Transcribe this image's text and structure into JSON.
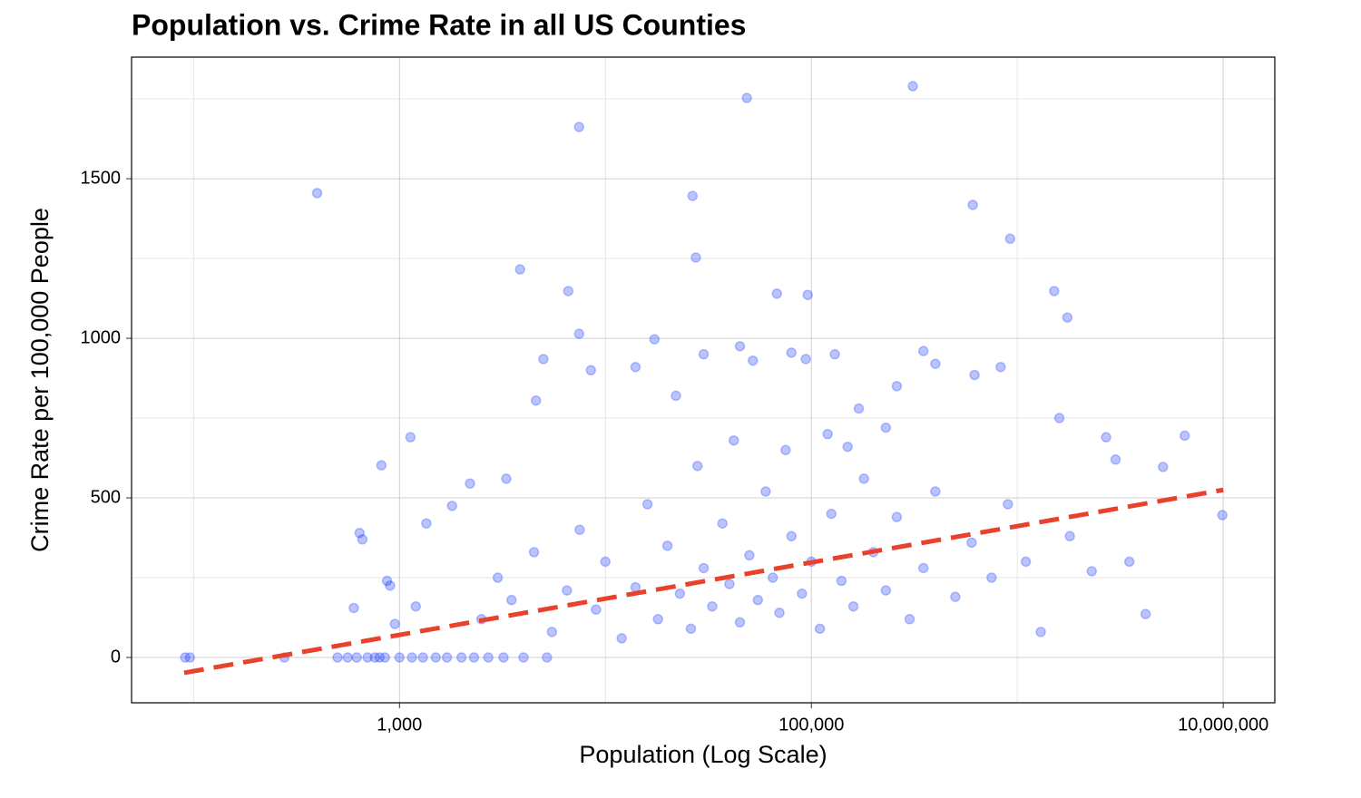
{
  "chart_data": {
    "type": "scatter",
    "title": "Population vs. Crime Rate in all US Counties",
    "x_label": "Population (Log Scale)",
    "y_label": "Crime Rate per 100,000 People",
    "x_scale": "log",
    "grid": true,
    "color": "#1a3dff",
    "xlim": [
      50,
      17800000
    ],
    "ylim": [
      -142,
      1881
    ],
    "xticks": [
      {
        "value": 1000,
        "label": "1,000"
      },
      {
        "value": 100000,
        "label": "100,000"
      },
      {
        "value": 10000000,
        "label": "10,000,000"
      }
    ],
    "x_minor_ticks": [
      100,
      10000,
      1000000
    ],
    "yticks": [
      0,
      500,
      1000,
      1500
    ],
    "y_minor_ticks": [
      250,
      750,
      1250,
      1750
    ],
    "trend": {
      "color": "#e8412c",
      "x": [
        90,
        10000000
      ],
      "y": [
        -48,
        525
      ]
    },
    "x": [
      91,
      96,
      276,
      500,
      560,
      620,
      700,
      760,
      800,
      850,
      1000,
      1150,
      1300,
      1500,
      1700,
      2000,
      2300,
      2700,
      3200,
      4000,
      5200,
      398,
      817,
      1130,
      3850,
      7450,
      48600,
      311000,
      26500,
      27500,
      608000,
      923000,
      96000,
      68000,
      1510000,
      1750000,
      9900000,
      5100000,
      4200000,
      6600,
      7450,
      17300,
      640,
      660,
      870,
      900,
      600,
      950,
      1200,
      1350,
      1800,
      2200,
      3300,
      4600,
      5000,
      8500,
      14000,
      22000,
      30000,
      45000,
      52000,
      80000,
      94000,
      130000,
      170000,
      260000,
      350000,
      400000,
      620000,
      830000,
      1600000,
      2700000,
      6500000,
      2500,
      3000,
      3500,
      4500,
      5500,
      6500,
      7500,
      9000,
      10000,
      12000,
      14000,
      16000,
      18000,
      20000,
      23000,
      26000,
      30000,
      33000,
      37000,
      40000,
      45000,
      50000,
      55000,
      60000,
      65000,
      70000,
      80000,
      90000,
      100000,
      110000,
      125000,
      140000,
      160000,
      180000,
      200000,
      230000,
      260000,
      300000,
      350000,
      400000,
      500000,
      600000,
      750000,
      900000,
      1100000,
      1300000,
      1800000,
      2300000,
      3000000,
      3500000,
      28000,
      42000,
      75000,
      120000,
      150000,
      230000
    ],
    "y": [
      0,
      0,
      0,
      0,
      0,
      0,
      0,
      0,
      0,
      0,
      0,
      0,
      0,
      0,
      0,
      0,
      0,
      0,
      0,
      0,
      0,
      1455,
      602,
      690,
      1216,
      1662,
      1753,
      1790,
      1446,
      1253,
      1418,
      1312,
      1136,
      1140,
      1148,
      1065,
      446,
      597,
      136,
      1148,
      1014,
      997,
      390,
      370,
      240,
      225,
      155,
      105,
      160,
      420,
      475,
      545,
      560,
      805,
      935,
      900,
      910,
      820,
      950,
      975,
      930,
      955,
      935,
      950,
      780,
      850,
      960,
      920,
      885,
      910,
      750,
      690,
      695,
      120,
      250,
      180,
      330,
      80,
      210,
      400,
      150,
      300,
      60,
      220,
      480,
      120,
      350,
      200,
      90,
      280,
      160,
      420,
      230,
      110,
      320,
      180,
      520,
      250,
      140,
      380,
      200,
      300,
      90,
      450,
      240,
      160,
      560,
      330,
      210,
      440,
      120,
      280,
      520,
      190,
      360,
      250,
      480,
      300,
      80,
      380,
      270,
      620,
      300,
      600,
      680,
      650,
      700,
      660,
      720
    ]
  }
}
